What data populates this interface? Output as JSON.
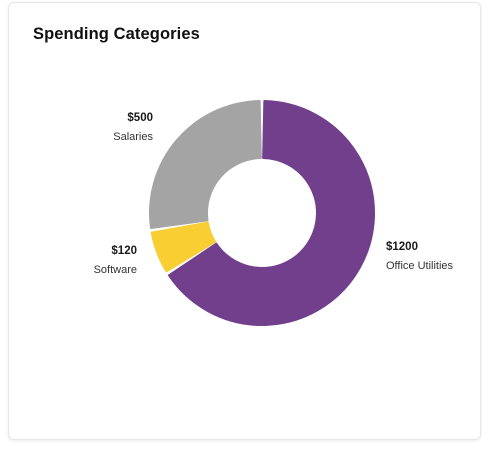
{
  "card": {
    "title": "Spending Categories"
  },
  "chart_data": {
    "type": "pie",
    "variant": "donut",
    "title": "Spending Categories",
    "slices": [
      {
        "name": "Office Utilities",
        "value": 1200,
        "value_label": "$1200",
        "color": "#713f8c"
      },
      {
        "name": "Software",
        "value": 120,
        "value_label": "$120",
        "color": "#f8ce33"
      },
      {
        "name": "Salaries",
        "value": 500,
        "value_label": "$500",
        "color": "#a4a4a4"
      }
    ],
    "start": "top",
    "direction": "clockwise",
    "legend": "none",
    "labels": "outside"
  }
}
